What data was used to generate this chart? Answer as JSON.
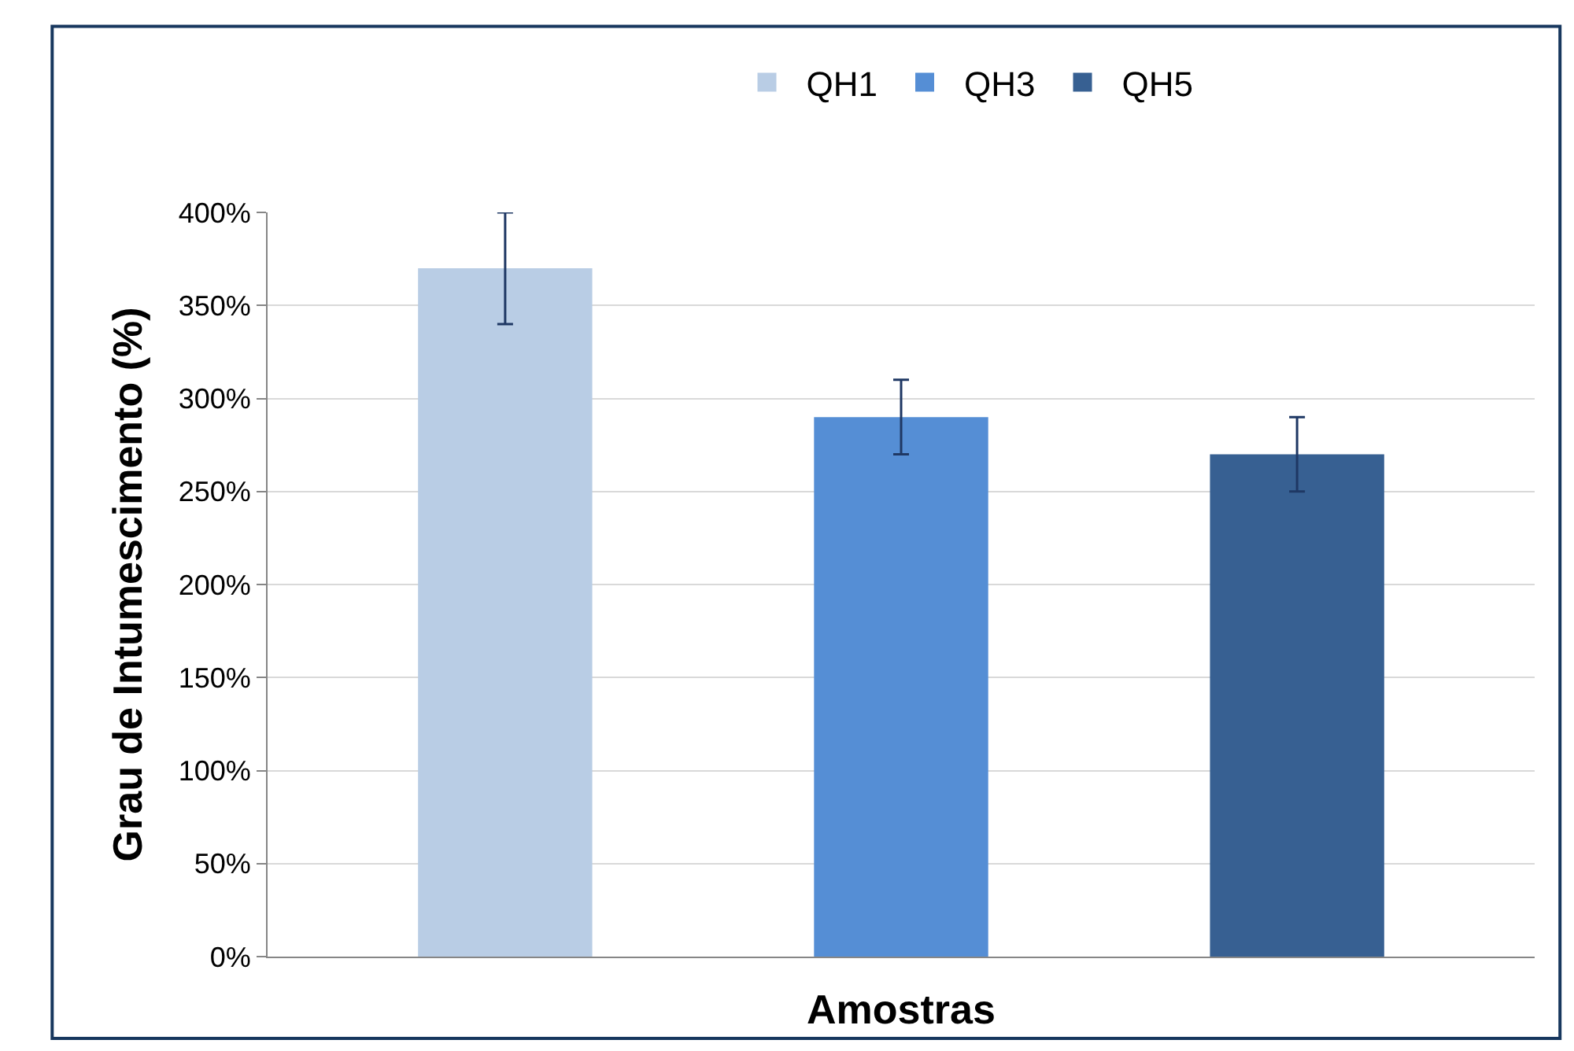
{
  "chart_data": {
    "type": "bar",
    "xlabel": "Amostras",
    "ylabel": "Grau de Intumescimento (%)",
    "categories": [
      null,
      null,
      null
    ],
    "series": [
      {
        "name": "QH1",
        "color": "#b9cde5",
        "values": [
          370,
          null,
          null
        ],
        "errors": [
          30,
          null,
          null
        ]
      },
      {
        "name": "QH3",
        "color": "#558ed5",
        "values": [
          null,
          290,
          null
        ],
        "errors": [
          null,
          20,
          null
        ]
      },
      {
        "name": "QH5",
        "color": "#376092",
        "values": [
          null,
          null,
          270
        ],
        "errors": [
          null,
          null,
          20
        ]
      }
    ],
    "ylim": [
      0,
      400
    ],
    "yticks": [
      {
        "value": 0,
        "label": "0%"
      },
      {
        "value": 50,
        "label": "50%"
      },
      {
        "value": 100,
        "label": "100%"
      },
      {
        "value": 150,
        "label": "150%"
      },
      {
        "value": 200,
        "label": "200%"
      },
      {
        "value": 250,
        "label": "250%"
      },
      {
        "value": 300,
        "label": "300%"
      },
      {
        "value": 350,
        "label": "350%"
      },
      {
        "value": 400,
        "label": "400%"
      }
    ],
    "grid": "y",
    "legend": "top"
  }
}
